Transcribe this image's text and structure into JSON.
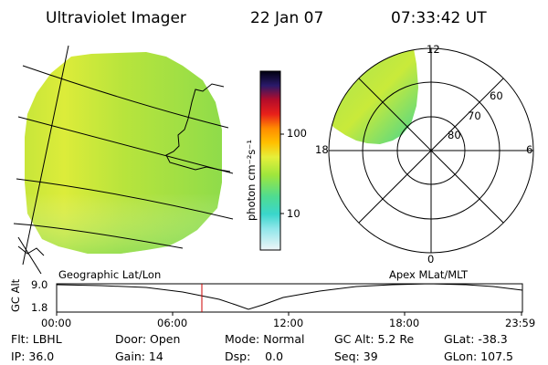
{
  "header": {
    "instrument": "Ultraviolet Imager",
    "date": "22 Jan 07",
    "time": "07:33:42 UT"
  },
  "colorbar": {
    "unit_label": "photon cm⁻²s⁻¹",
    "tick_100": "100",
    "tick_10": "10",
    "scale": "log",
    "colors": [
      "#e8f2f6",
      "#49e0e6",
      "#2fd3a0",
      "#9fe63c",
      "#e6ef3a",
      "#ffc000",
      "#ff8c00",
      "#e8201a",
      "#b40c2a",
      "#2a1a6a",
      "#000010"
    ]
  },
  "polar_plot": {
    "mlt_labels": {
      "top": "12",
      "left": "18",
      "right": "6",
      "bottom": "0"
    },
    "lat_labels": [
      "60",
      "70",
      "80"
    ]
  },
  "altitude_panel": {
    "ylabel": "GC Alt",
    "ymax_label": "9.0",
    "ymin_label": "1.8",
    "left_caption": "Geographic Lat/Lon",
    "right_caption": "Apex MLat/MLT",
    "time_ticks": [
      "00:00",
      "06:00",
      "12:00",
      "18:00",
      "23:59"
    ],
    "current_time_marker_color": "#cc0000"
  },
  "status": {
    "flt": "Flt: LBHL",
    "door": "Door: Open",
    "mode": "Mode: Normal",
    "gc_alt": "GC Alt: 5.2 Re",
    "glat": "GLat: -38.3",
    "ip": "IP: 36.0",
    "gain": "Gain: 14",
    "dsp": "Dsp:    0.0",
    "seq": "Seq: 39",
    "glon": "GLon: 107.5"
  }
}
